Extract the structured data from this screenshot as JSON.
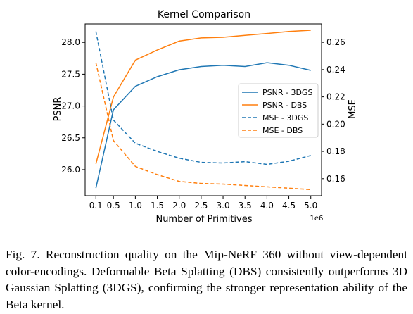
{
  "chart_data": {
    "type": "line",
    "title": "Kernel Comparison",
    "xlabel": "Number of Primitives",
    "x_offset_label": "1e6",
    "y_left_label": "PSNR",
    "y_right_label": "MSE",
    "x_ticks": [
      "0.1",
      "0.5",
      "1.0",
      "1.5",
      "2.0",
      "2.5",
      "3.0",
      "3.5",
      "4.0",
      "4.5",
      "5.0"
    ],
    "x_tick_values": [
      0.1,
      0.5,
      1.0,
      1.5,
      2.0,
      2.5,
      3.0,
      3.5,
      4.0,
      4.5,
      5.0
    ],
    "y_left_ticks": [
      "26.0",
      "26.5",
      "27.0",
      "27.5",
      "28.0"
    ],
    "y_left_tick_values": [
      26.0,
      26.5,
      27.0,
      27.5,
      28.0
    ],
    "y_right_ticks": [
      "0.16",
      "0.18",
      "0.20",
      "0.22",
      "0.24",
      "0.26"
    ],
    "y_right_tick_values": [
      0.16,
      0.18,
      0.2,
      0.22,
      0.24,
      0.26
    ],
    "xlim": [
      -0.145,
      5.245
    ],
    "ylim_left": [
      25.59,
      28.29
    ],
    "ylim_right": [
      0.1475,
      0.2735
    ],
    "grid": false,
    "legend_position": "center-right",
    "x": [
      0.1,
      0.5,
      1.0,
      1.5,
      2.0,
      2.5,
      3.0,
      3.5,
      4.0,
      4.5,
      5.0
    ],
    "series": [
      {
        "name": "PSNR - 3DGS",
        "axis": "left",
        "style": "solid",
        "color": "#1f77b4",
        "values": [
          25.71,
          26.94,
          27.31,
          27.46,
          27.57,
          27.62,
          27.64,
          27.62,
          27.68,
          27.64,
          27.56
        ]
      },
      {
        "name": "PSNR - DBS",
        "axis": "left",
        "style": "solid",
        "color": "#ff7f0e",
        "values": [
          26.09,
          27.14,
          27.72,
          27.88,
          28.02,
          28.07,
          28.08,
          28.11,
          28.14,
          28.17,
          28.19
        ]
      },
      {
        "name": "MSE - 3DGS",
        "axis": "right",
        "style": "dashed",
        "color": "#1f77b4",
        "values": [
          0.268,
          0.203,
          0.186,
          0.18,
          0.175,
          0.172,
          0.1715,
          0.1725,
          0.1705,
          0.1728,
          0.177
        ]
      },
      {
        "name": "MSE - DBS",
        "axis": "right",
        "style": "dashed",
        "color": "#ff7f0e",
        "values": [
          0.245,
          0.188,
          0.169,
          0.163,
          0.158,
          0.1565,
          0.156,
          0.155,
          0.154,
          0.153,
          0.152
        ]
      }
    ]
  },
  "caption": {
    "text": "Fig. 7. Reconstruction quality on the Mip-NeRF 360 without view-dependent color-encodings. Deformable Beta Splatting (DBS) consistently outperforms 3D Gaussian Splatting (3DGS), confirming the stronger representation ability of the Beta kernel."
  }
}
